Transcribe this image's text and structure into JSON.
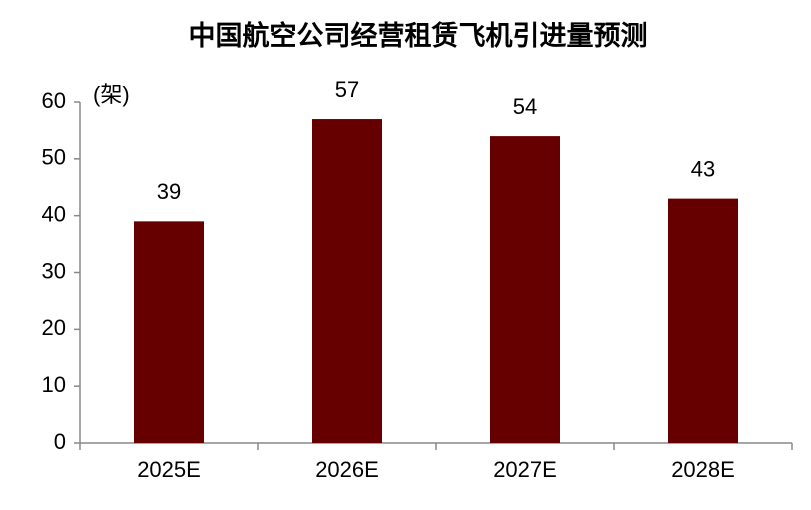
{
  "chart_data": {
    "type": "bar",
    "title": "中国航空公司经营租赁飞机引进量预测",
    "y_label": "(架)",
    "categories": [
      "2025E",
      "2026E",
      "2027E",
      "2028E"
    ],
    "values": [
      39,
      57,
      54,
      43
    ],
    "color": "#660000",
    "ylim": [
      0,
      60
    ],
    "yticks": [
      0,
      10,
      20,
      30,
      40,
      50,
      60
    ],
    "grid": false
  }
}
